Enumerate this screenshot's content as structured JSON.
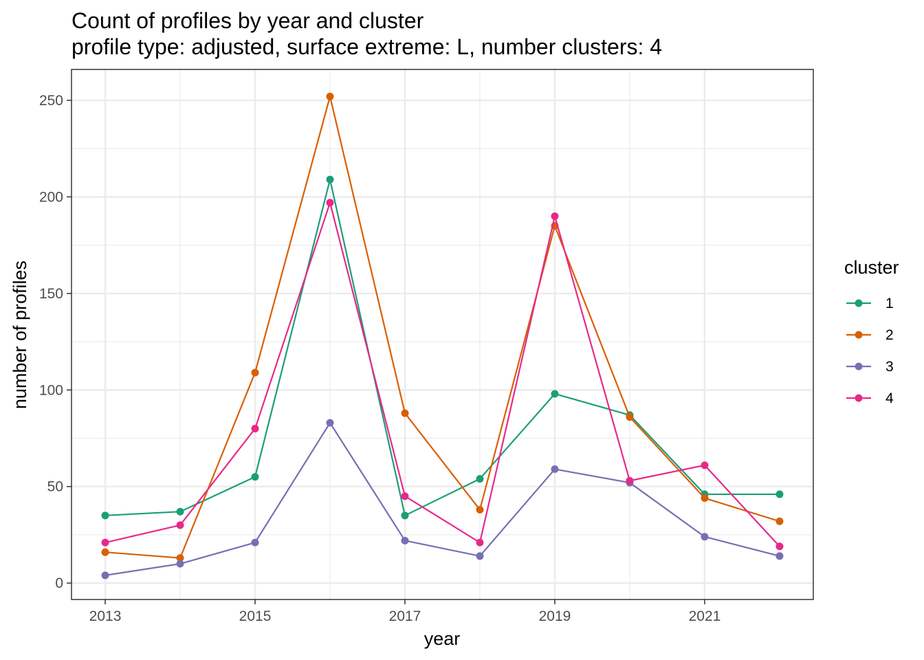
{
  "chart_data": {
    "type": "line",
    "title": "Count of profiles by year and cluster",
    "subtitle": "profile type: adjusted, surface extreme: L, number clusters: 4",
    "xlabel": "year",
    "ylabel": "number of profiles",
    "x": [
      2013,
      2014,
      2015,
      2016,
      2017,
      2018,
      2019,
      2020,
      2021,
      2022
    ],
    "x_ticks": [
      2013,
      2015,
      2017,
      2019,
      2021
    ],
    "x_tick_labels": [
      "2013",
      "2015",
      "2017",
      "2019",
      "2021"
    ],
    "y_ticks": [
      0,
      50,
      100,
      150,
      200,
      250
    ],
    "y_tick_labels": [
      "0",
      "50",
      "100",
      "150",
      "200",
      "250"
    ],
    "xlim": [
      2012.55,
      2022.45
    ],
    "ylim": [
      -8.5,
      266
    ],
    "grid": true,
    "legend": {
      "title": "cluster",
      "position": "right"
    },
    "series": [
      {
        "name": "1",
        "color": "#1b9e77",
        "values": [
          35,
          37,
          55,
          209,
          35,
          54,
          98,
          87,
          46,
          46
        ]
      },
      {
        "name": "2",
        "color": "#d95f02",
        "values": [
          16,
          13,
          109,
          252,
          88,
          38,
          185,
          86,
          44,
          32
        ]
      },
      {
        "name": "3",
        "color": "#7570b3",
        "values": [
          4,
          10,
          21,
          83,
          22,
          14,
          59,
          52,
          24,
          14
        ]
      },
      {
        "name": "4",
        "color": "#e7298a",
        "values": [
          21,
          30,
          80,
          197,
          45,
          21,
          190,
          53,
          61,
          19
        ]
      }
    ]
  }
}
